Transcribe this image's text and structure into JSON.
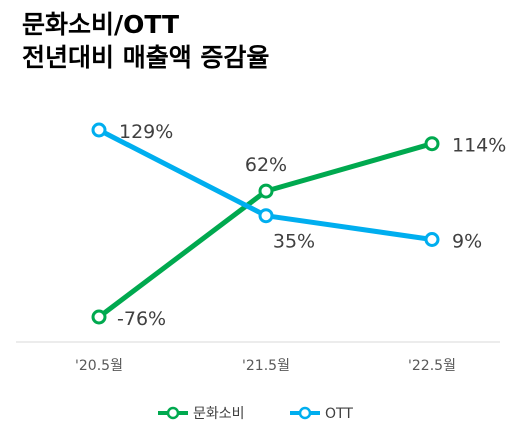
{
  "title": {
    "line1": "문화소비/OTT",
    "line2": "전년대비 매출액 증감율"
  },
  "colors": {
    "culture": "#00a94f",
    "ott": "#00aeef",
    "axis": "#d9d9d9"
  },
  "chart_data": {
    "type": "line",
    "title": "문화소비/OTT 전년대비 매출액 증감율",
    "categories": [
      "'20.5월",
      "'21.5월",
      "'22.5월"
    ],
    "series": [
      {
        "name": "문화소비",
        "values": [
          -76,
          62,
          114
        ],
        "labels": [
          "-76%",
          "62%",
          "114%"
        ]
      },
      {
        "name": "OTT",
        "values": [
          129,
          35,
          9
        ],
        "labels": [
          "129%",
          "35%",
          "9%"
        ]
      }
    ],
    "ylim": [
      -100,
      140
    ],
    "grid": false,
    "legend": "bottom"
  }
}
